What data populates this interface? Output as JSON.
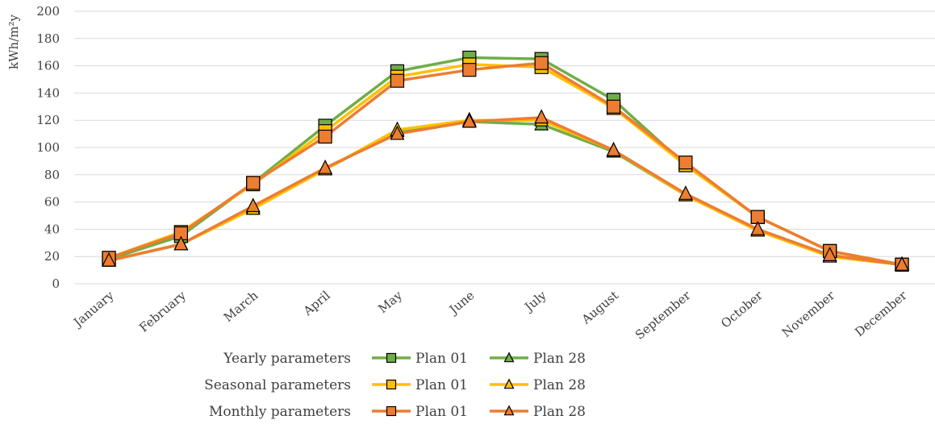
{
  "chart_data": {
    "type": "line",
    "title": "",
    "xlabel": "",
    "ylabel": "kWh/m²y",
    "ylim": [
      0,
      200
    ],
    "yticks": [
      0,
      20,
      40,
      60,
      80,
      100,
      120,
      140,
      160,
      180,
      200
    ],
    "grid": true,
    "legend_position": "bottom",
    "categories": [
      "January",
      "February",
      "March",
      "April",
      "May",
      "June",
      "July",
      "August",
      "September",
      "October",
      "November",
      "December"
    ],
    "groups": [
      {
        "label": "Yearly parameters",
        "color": "#70AD47"
      },
      {
        "label": "Seasonal parameters",
        "color": "#FFC000"
      },
      {
        "label": "Monthly parameters",
        "color": "#ED7D31"
      }
    ],
    "series": [
      {
        "name": "Plan 01",
        "group": 0,
        "marker": "square",
        "values": [
          18,
          35,
          74,
          116,
          156,
          166,
          165,
          135,
          87,
          49,
          24,
          14
        ]
      },
      {
        "name": "Plan 28",
        "group": 0,
        "marker": "triangle",
        "values": [
          17,
          29,
          56,
          84,
          112,
          119,
          117,
          97,
          65,
          39,
          20,
          14
        ]
      },
      {
        "name": "Plan 01",
        "group": 1,
        "marker": "square",
        "values": [
          19,
          38,
          73,
          112,
          152,
          161,
          159,
          129,
          87,
          49,
          24,
          14
        ]
      },
      {
        "name": "Plan 28",
        "group": 1,
        "marker": "triangle",
        "values": [
          17,
          29,
          55,
          84,
          113,
          120,
          120,
          98,
          65,
          39,
          20,
          14
        ]
      },
      {
        "name": "Plan 01",
        "group": 2,
        "marker": "square",
        "values": [
          19,
          37,
          74,
          108,
          149,
          157,
          162,
          130,
          89,
          49,
          24,
          14
        ]
      },
      {
        "name": "Plan 28",
        "group": 2,
        "marker": "triangle",
        "values": [
          17,
          29,
          57,
          85,
          110,
          119,
          122,
          98,
          66,
          40,
          21,
          14
        ]
      }
    ]
  }
}
